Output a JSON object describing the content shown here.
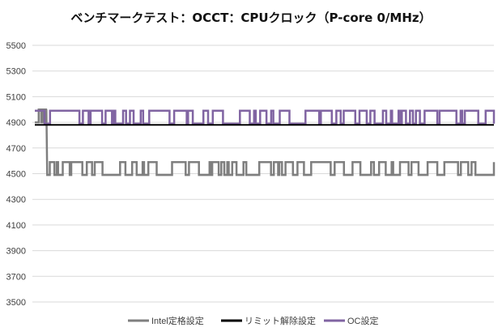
{
  "chart_data": {
    "type": "line",
    "title": "ベンチマークテスト：OCCT：CPUクロック（P-core 0/MHz）",
    "xlabel": "",
    "ylabel": "",
    "ylim": [
      3500,
      5500
    ],
    "yticks": [
      3500,
      3700,
      3900,
      4100,
      4300,
      4500,
      4700,
      4900,
      5100,
      5300,
      5500
    ],
    "grid": true,
    "legend": "bottom",
    "series": [
      {
        "name": "Intel定格設定",
        "color": "#7f7f7f",
        "description_values": "starts at 4900, drops to about 4500 with frequent spikes to 4600",
        "initial_value": 4900,
        "low_value": 4490,
        "high_value": 4590,
        "drop_at": 0.025
      },
      {
        "name": "リミット解除設定",
        "color": "#000000",
        "constant_value": 4880
      },
      {
        "name": "OC設定",
        "color": "#8064a2",
        "low_value": 4890,
        "high_value": 4990
      }
    ]
  }
}
